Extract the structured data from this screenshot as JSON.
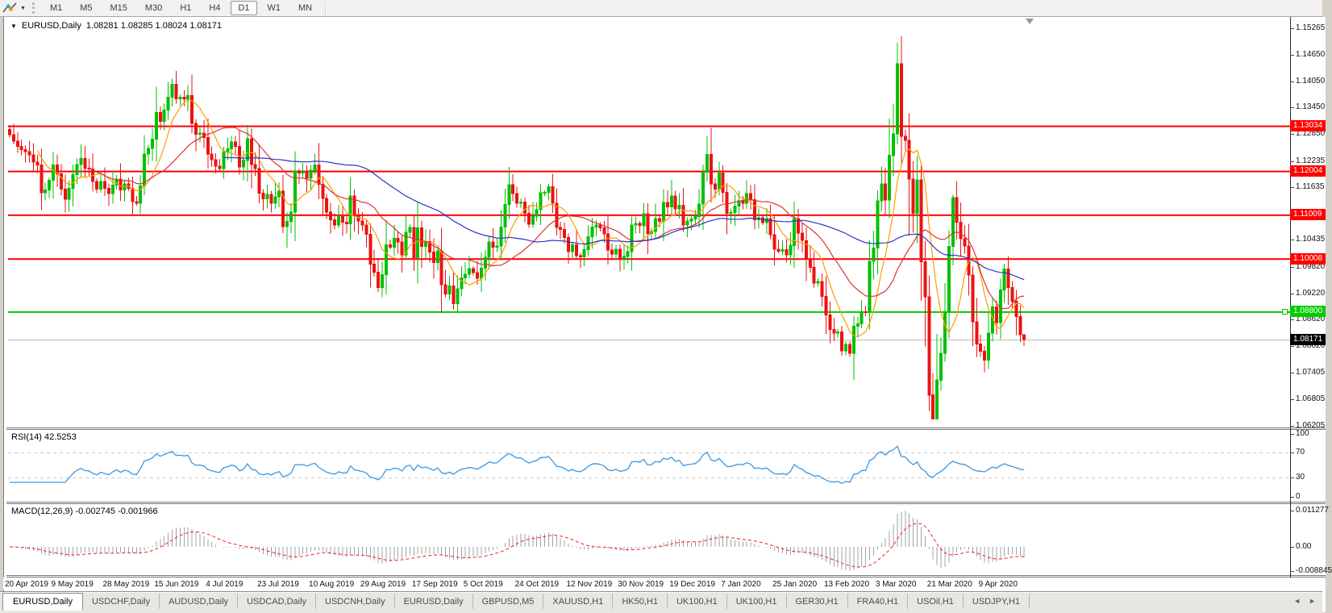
{
  "icons": {
    "dropdown": "▼",
    "caret_small": "▼",
    "scroll_left": "◄",
    "scroll_right": "►"
  },
  "toolbar": {
    "timeframes": [
      "M1",
      "M5",
      "M15",
      "M30",
      "H1",
      "H4",
      "D1",
      "W1",
      "MN"
    ],
    "active_timeframe": "D1"
  },
  "title": {
    "symbol": "EURUSD,Daily",
    "ohlc": "1.08281 1.08285 1.08024 1.08171"
  },
  "price_axis": {
    "ticks": [
      "1.15265",
      "1.14650",
      "1.14050",
      "1.13450",
      "1.12850",
      "1.12235",
      "1.11635",
      "1.10435",
      "1.09820",
      "1.09220",
      "1.08620",
      "1.08020",
      "1.07405",
      "1.06805",
      "1.06205"
    ]
  },
  "time_axis": {
    "labels": [
      "20 Apr 2019",
      "9 May 2019",
      "28 May 2019",
      "15 Jun 2019",
      "4 Jul 2019",
      "23 Jul 2019",
      "10 Aug 2019",
      "29 Aug 2019",
      "17 Sep 2019",
      "5 Oct 2019",
      "24 Oct 2019",
      "12 Nov 2019",
      "30 Nov 2019",
      "19 Dec 2019",
      "7 Jan 2020",
      "25 Jan 2020",
      "13 Feb 2020",
      "3 Mar 2020",
      "21 Mar 2020",
      "9 Apr 2020"
    ]
  },
  "indicators": {
    "rsi": {
      "label": "RSI(14) 42.5253",
      "period": 14,
      "value": 42.5253,
      "levels": [
        70,
        30
      ],
      "axis_ticks": [
        "100",
        "70",
        "30",
        "0"
      ],
      "color": "#3d96dd",
      "level_line_color": "#c9c9c9"
    },
    "macd": {
      "label": "MACD(12,26,9) -0.002745 -0.001966",
      "params": [
        12,
        26,
        9
      ],
      "macd_value": -0.002745,
      "signal_value": -0.001966,
      "axis_ticks": [
        "0.011277",
        "0.00",
        "-0.008845"
      ],
      "histogram_color": "#a3a3a3",
      "signal_color": "#fb1b1b"
    }
  },
  "tabs": {
    "items": [
      "EURUSD,Daily",
      "USDCHF,Daily",
      "AUDUSD,Daily",
      "USDCAD,Daily",
      "USDCNH,Daily",
      "EURUSD,Daily",
      "GBPUSD,M5",
      "XAUUSD,H1",
      "HK50,H1",
      "UK100,H1",
      "UK100,H1",
      "GER30,H1",
      "FRA40,H1",
      "USOil,H1",
      "USDJPY,H1"
    ],
    "active_index": 0
  },
  "chart_data": {
    "type": "candlestick",
    "symbol": "EURUSD",
    "timeframe": "Daily",
    "ohlc_current": {
      "open": 1.08281,
      "high": 1.08285,
      "low": 1.08024,
      "close": 1.08171
    },
    "price_range": {
      "top": 1.1549,
      "bottom": 1.0617
    },
    "candle_colors": {
      "up": "#00c000",
      "down": "#ee1111"
    },
    "closes": [
      1.1284,
      1.127,
      1.1258,
      1.125,
      1.1246,
      1.1238,
      1.1222,
      1.1215,
      1.1152,
      1.1158,
      1.118,
      1.1215,
      1.1195,
      1.116,
      1.1137,
      1.1162,
      1.1193,
      1.1216,
      1.123,
      1.1208,
      1.1206,
      1.1178,
      1.116,
      1.1178,
      1.1162,
      1.115,
      1.1169,
      1.1183,
      1.1158,
      1.1172,
      1.1162,
      1.1132,
      1.1128,
      1.1168,
      1.124,
      1.1253,
      1.1274,
      1.1335,
      1.1315,
      1.134,
      1.137,
      1.1399,
      1.1366,
      1.137,
      1.1365,
      1.1373,
      1.131,
      1.1285,
      1.1288,
      1.1278,
      1.124,
      1.1227,
      1.1213,
      1.1207,
      1.1246,
      1.1252,
      1.1268,
      1.1258,
      1.1211,
      1.1226,
      1.1275,
      1.1216,
      1.1207,
      1.1151,
      1.1138,
      1.1148,
      1.1128,
      1.1143,
      1.1156,
      1.1075,
      1.1087,
      1.1108,
      1.1202,
      1.1197,
      1.12,
      1.1185,
      1.1203,
      1.1215,
      1.1171,
      1.1139,
      1.1108,
      1.109,
      1.1078,
      1.1098,
      1.1085,
      1.1081,
      1.1145,
      1.11,
      1.1088,
      1.1078,
      1.1057,
      1.0989,
      1.0971,
      1.0936,
      1.0965,
      1.1033,
      1.1028,
      1.1048,
      1.104,
      1.101,
      1.1062,
      1.1073,
      1.1004,
      1.1072,
      1.103,
      1.1041,
      1.1017,
      1.0993,
      1.102,
      1.0942,
      1.0921,
      1.094,
      1.0899,
      1.0933,
      1.0958,
      1.0966,
      1.0979,
      1.097,
      1.0957,
      1.098,
      1.1005,
      1.104,
      1.1028,
      1.1031,
      1.1074,
      1.1125,
      1.117,
      1.115,
      1.1128,
      1.1131,
      1.1105,
      1.108,
      1.1099,
      1.1113,
      1.1152,
      1.1153,
      1.1166,
      1.1128,
      1.1073,
      1.1068,
      1.105,
      1.1018,
      1.1033,
      1.1009,
      1.1006,
      1.1022,
      1.1052,
      1.1074,
      1.1078,
      1.1072,
      1.1058,
      1.1021,
      1.1012,
      1.1023,
      1.1002,
      1.1007,
      1.1018,
      1.1078,
      1.1082,
      1.1077,
      1.1104,
      1.1059,
      1.1064,
      1.1093,
      1.1087,
      1.113,
      1.112,
      1.1145,
      1.1115,
      1.1123,
      1.1078,
      1.1088,
      1.1092,
      1.1098,
      1.1126,
      1.1199,
      1.1239,
      1.1172,
      1.116,
      1.1197,
      1.1153,
      1.1105,
      1.1107,
      1.1122,
      1.1134,
      1.1128,
      1.115,
      1.1136,
      1.109,
      1.1095,
      1.1084,
      1.1093,
      1.1056,
      1.1023,
      1.1019,
      1.1022,
      1.101,
      1.1032,
      1.1093,
      1.106,
      1.1043,
      1.1,
      1.0982,
      1.0946,
      1.095,
      1.0916,
      1.0873,
      1.084,
      1.0832,
      1.0835,
      1.0792,
      1.0806,
      1.0786,
      1.0848,
      1.0853,
      1.0881,
      1.088,
      1.0996,
      1.1026,
      1.1134,
      1.1172,
      1.1135,
      1.1237,
      1.1286,
      1.1446,
      1.1281,
      1.1271,
      1.1183,
      1.1105,
      1.1181,
      1.0995,
      1.0915,
      1.0691,
      1.0636,
      1.0725,
      1.0786,
      1.0881,
      1.103,
      1.1141,
      1.1085,
      1.1047,
      1.1031,
      1.0964,
      1.0858,
      1.0807,
      1.0791,
      1.077,
      1.0832,
      1.0892,
      1.0856,
      1.093,
      1.0978,
      1.0936,
      1.0905,
      1.087,
      1.0828,
      1.08171
    ],
    "wick_overrides": {
      "41": [
        1.1412,
        null
      ],
      "69": [
        null,
        1.106
      ],
      "70": [
        null,
        1.1027
      ],
      "93": [
        null,
        1.0926
      ],
      "112": [
        null,
        1.0885
      ],
      "113": [
        null,
        1.0879
      ],
      "144": [
        null,
        1.0981
      ],
      "212": [
        null,
        1.0778
      ],
      "223": [
        1.1355,
        null
      ],
      "224": [
        1.1495,
        null
      ],
      "227": [
        1.1333,
        1.1054
      ],
      "231": [
        null,
        1.0802
      ],
      "232": [
        null,
        1.0655
      ],
      "233": [
        1.074,
        1.0636
      ],
      "234": [
        1.083,
        1.0635
      ],
      "238": [
        1.1147,
        null
      ]
    },
    "x_label_first_index": 4,
    "x_label_step": 13,
    "horizontal_lines": [
      {
        "price": 1.13034,
        "label": "1.13034",
        "color": "#fe0000"
      },
      {
        "price": 1.12004,
        "label": "1.12004",
        "color": "#fe0000"
      },
      {
        "price": 1.11009,
        "label": "1.11009",
        "color": "#fe0000"
      },
      {
        "price": 1.10008,
        "label": "1.10008",
        "color": "#fe0000"
      },
      {
        "price": 1.088,
        "label": "1.08800",
        "color": "#00ce00"
      }
    ],
    "current_price": {
      "value": 1.08171,
      "label": "1.08171",
      "line_color": "#b9b9b9",
      "badge_color": "#000000"
    },
    "moving_averages": [
      {
        "period": 8,
        "color": "#ff9c00"
      },
      {
        "period": 21,
        "color": "#e03232"
      },
      {
        "period": 55,
        "color": "#2a35c8"
      }
    ]
  }
}
